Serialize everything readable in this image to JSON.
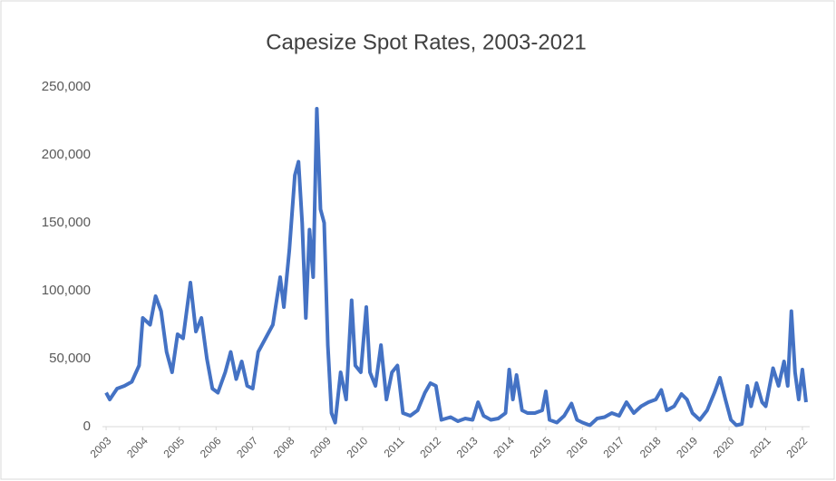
{
  "chart_data": {
    "type": "line",
    "title": "Capesize Spot Rates, 2003-2021",
    "xlim": [
      2002.9,
      2022.2
    ],
    "xticks": [
      2003,
      2004,
      2005,
      2006,
      2007,
      2008,
      2009,
      2010,
      2011,
      2012,
      2013,
      2014,
      2015,
      2016,
      2017,
      2018,
      2019,
      2020,
      2021,
      2022
    ],
    "ylim": [
      0,
      250000
    ],
    "yticks": [
      0,
      {
        "value": 50000,
        "label": "50,000"
      },
      {
        "value": 100000,
        "label": "100,000"
      },
      {
        "value": 150000,
        "label": "150,000"
      },
      {
        "value": 200000,
        "label": "200,000"
      },
      {
        "value": 250000,
        "label": "250,000"
      }
    ],
    "grid": false,
    "series": [
      {
        "color": "#4472c4",
        "x": [
          2003.0,
          2003.1,
          2003.3,
          2003.5,
          2003.7,
          2003.9,
          2004.0,
          2004.2,
          2004.35,
          2004.5,
          2004.65,
          2004.8,
          2004.95,
          2005.1,
          2005.3,
          2005.45,
          2005.6,
          2005.75,
          2005.9,
          2006.05,
          2006.25,
          2006.4,
          2006.55,
          2006.7,
          2006.85,
          2007.0,
          2007.15,
          2007.35,
          2007.55,
          2007.75,
          2007.85,
          2008.0,
          2008.15,
          2008.25,
          2008.35,
          2008.45,
          2008.55,
          2008.65,
          2008.75,
          2008.85,
          2008.95,
          2009.05,
          2009.15,
          2009.25,
          2009.4,
          2009.55,
          2009.7,
          2009.8,
          2009.95,
          2010.1,
          2010.2,
          2010.35,
          2010.5,
          2010.65,
          2010.8,
          2010.95,
          2011.1,
          2011.3,
          2011.5,
          2011.7,
          2011.85,
          2012.0,
          2012.15,
          2012.4,
          2012.6,
          2012.8,
          2013.0,
          2013.15,
          2013.3,
          2013.5,
          2013.7,
          2013.9,
          2014.0,
          2014.1,
          2014.2,
          2014.35,
          2014.5,
          2014.7,
          2014.9,
          2015.0,
          2015.1,
          2015.3,
          2015.5,
          2015.7,
          2015.85,
          2016.0,
          2016.2,
          2016.4,
          2016.6,
          2016.8,
          2017.0,
          2017.2,
          2017.4,
          2017.6,
          2017.8,
          2018.0,
          2018.15,
          2018.3,
          2018.5,
          2018.7,
          2018.85,
          2019.0,
          2019.2,
          2019.4,
          2019.6,
          2019.75,
          2019.9,
          2020.05,
          2020.2,
          2020.35,
          2020.5,
          2020.6,
          2020.75,
          2020.9,
          2021.0,
          2021.2,
          2021.35,
          2021.5,
          2021.6,
          2021.7,
          2021.8,
          2021.9,
          2022.0,
          2022.1
        ],
        "values": [
          25000,
          20000,
          28000,
          30000,
          33000,
          45000,
          80000,
          75000,
          96000,
          85000,
          55000,
          40000,
          68000,
          65000,
          106000,
          70000,
          80000,
          50000,
          28000,
          25000,
          40000,
          55000,
          35000,
          48000,
          30000,
          28000,
          55000,
          65000,
          75000,
          110000,
          88000,
          130000,
          185000,
          195000,
          150000,
          80000,
          145000,
          110000,
          234000,
          160000,
          150000,
          60000,
          10000,
          3000,
          40000,
          20000,
          93000,
          45000,
          40000,
          88000,
          40000,
          30000,
          60000,
          20000,
          40000,
          45000,
          10000,
          8000,
          12000,
          25000,
          32000,
          30000,
          5000,
          7000,
          4000,
          6000,
          5000,
          18000,
          8000,
          5000,
          6000,
          10000,
          42000,
          20000,
          38000,
          12000,
          10000,
          10000,
          12000,
          26000,
          5000,
          3000,
          8000,
          17000,
          5000,
          3000,
          1000,
          6000,
          7000,
          10000,
          8000,
          18000,
          10000,
          15000,
          18000,
          20000,
          27000,
          12000,
          15000,
          24000,
          20000,
          10000,
          5000,
          12000,
          25000,
          36000,
          20000,
          5000,
          1000,
          2000,
          30000,
          15000,
          32000,
          18000,
          15000,
          43000,
          30000,
          48000,
          30000,
          85000,
          40000,
          20000,
          42000,
          18000
        ]
      }
    ]
  }
}
